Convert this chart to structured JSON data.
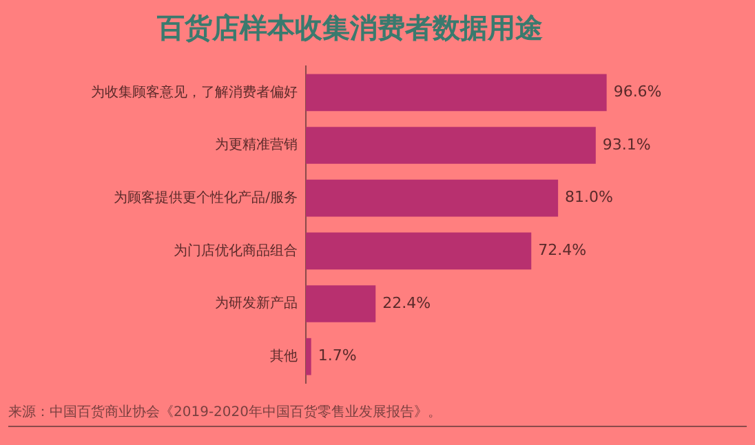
{
  "chart_data": {
    "type": "bar",
    "orientation": "horizontal",
    "title": "百货店样本收集消费者数据用途",
    "categories": [
      "为收集顾客意见，了解消费者偏好",
      "为更精准营销",
      "为顾客提供更个性化产品/服务",
      "为门店优化商品组合",
      "为研发新产品",
      "其他"
    ],
    "values": [
      96.6,
      93.1,
      81.0,
      72.4,
      22.4,
      1.7
    ],
    "value_labels": [
      "96.6%",
      "93.1%",
      "81.0%",
      "72.4%",
      "22.4%",
      "1.7%"
    ],
    "color": "#b8306f",
    "tick_labels": "y",
    "annotations": [
      "来源：中国百货商业协会《2019-2020年中国百货零售业发展报告》。"
    ]
  }
}
